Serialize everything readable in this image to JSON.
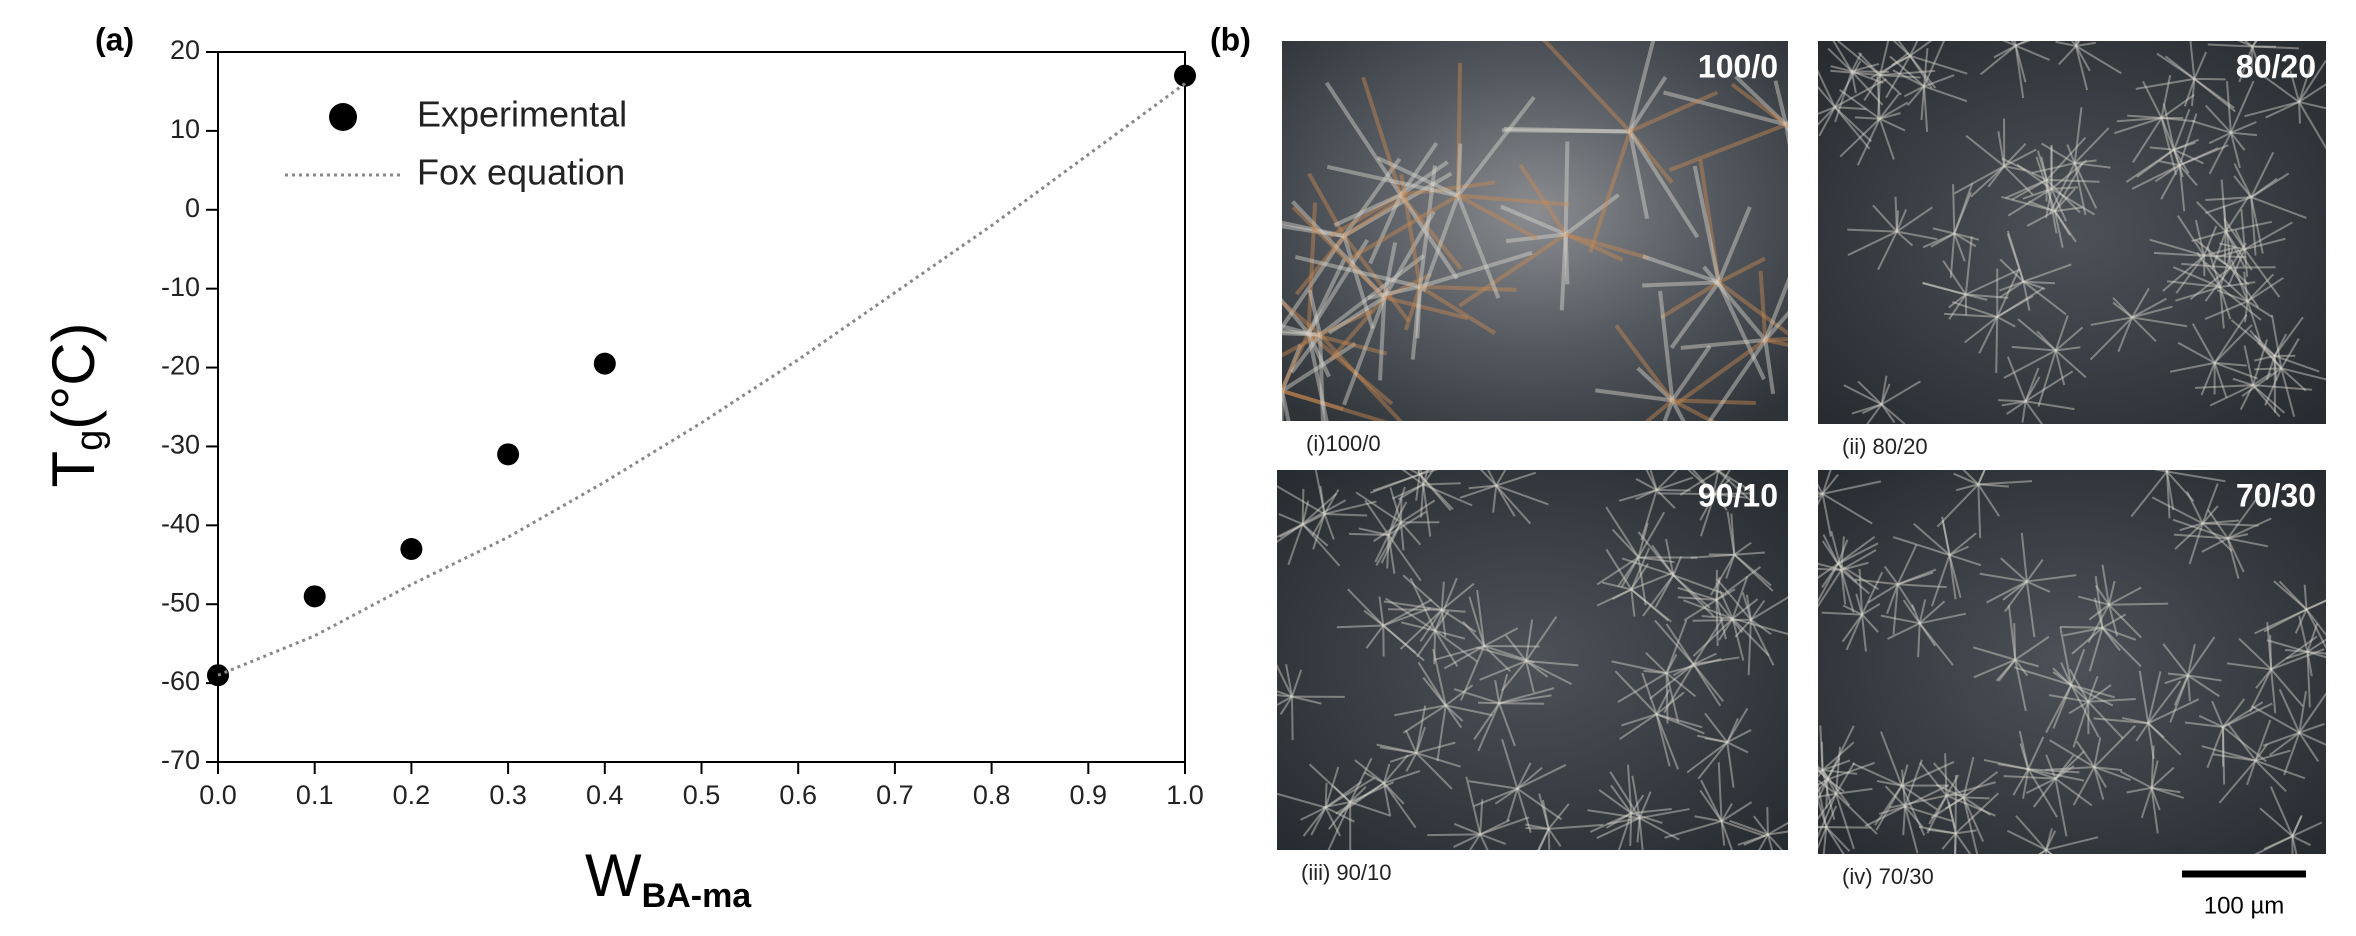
{
  "chart_data": {
    "type": "scatter",
    "panel_label": "(a)",
    "ylabel": "T",
    "ylabel_sub": "g",
    "ylabel_rest": "(°C)",
    "xlabel": "W",
    "xlabel_sub": "BA-ma",
    "xlim": [
      0,
      1
    ],
    "ylim": [
      -70,
      20
    ],
    "xticks": [
      {
        "value": 0,
        "label": "0.0"
      },
      0.1,
      0.2,
      0.3,
      0.4,
      0.5,
      0.6,
      0.7,
      0.8,
      0.9,
      {
        "value": 1,
        "label": "1.0"
      }
    ],
    "yticks": [
      -70,
      -60,
      -50,
      -40,
      -30,
      -20,
      -10,
      0,
      10,
      20
    ],
    "legend": "upper left",
    "series": [
      {
        "name": "Experimental",
        "type": "scatter",
        "color": "#000000",
        "x": [
          0,
          0.1,
          0.2,
          0.3,
          0.4,
          1.0
        ],
        "values": [
          -59,
          -49,
          -43,
          -31,
          -19.5,
          17
        ]
      },
      {
        "name": "Fox equation",
        "type": "line",
        "color": "#888888",
        "x": [
          0,
          0.1,
          0.2,
          0.3,
          0.4,
          0.5,
          0.6,
          0.7,
          0.8,
          0.9,
          1.0
        ],
        "values": [
          -59,
          -54,
          -47.5,
          -41.5,
          -34.5,
          -27,
          -19,
          -10.5,
          -2,
          7,
          16
        ]
      }
    ]
  },
  "panel_b": {
    "label": "(b)",
    "micrographs": [
      {
        "overlay": "100/0",
        "caption": "(i)100/0"
      },
      {
        "overlay": "80/20",
        "caption": "(ii) 80/20"
      },
      {
        "overlay": "90/10",
        "caption": "(iii) 90/10"
      },
      {
        "overlay": "70/30",
        "caption": "(iv) 70/30"
      }
    ],
    "scale_bar": "100 µm"
  }
}
